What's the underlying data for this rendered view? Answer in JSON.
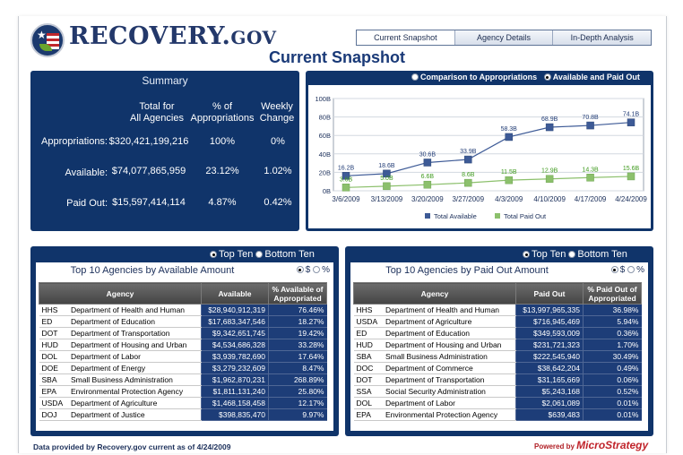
{
  "logo": {
    "main": "RECOVERY.",
    "suffix": "GOV"
  },
  "tabs": [
    {
      "label": "Current Snapshot",
      "active": true
    },
    {
      "label": "Agency Details",
      "active": false
    },
    {
      "label": "In-Depth Analysis",
      "active": false
    }
  ],
  "page_title": "Current Snapshot",
  "summary": {
    "title": "Summary",
    "col1": "Total for\nAll Agencies",
    "col2": "% of\nAppropriations",
    "col3": "Weekly\nChange",
    "rows": [
      {
        "label": "Appropriations:",
        "total": "$320,421,199,216",
        "pct": "100%",
        "weekly": "0%"
      },
      {
        "label": "Available:",
        "total": "$74,077,865,959",
        "pct": "23.12%",
        "weekly": "1.02%"
      },
      {
        "label": "Paid Out:",
        "total": "$15,597,414,114",
        "pct": "4.87%",
        "weekly": "0.42%"
      }
    ]
  },
  "chart_controls": {
    "option1": "Comparison to Appropriations",
    "option2": "Available and Paid Out",
    "selected": "option2"
  },
  "chart_data": {
    "type": "line",
    "x": [
      "3/6/2009",
      "3/13/2009",
      "3/20/2009",
      "3/27/2009",
      "4/3/2009",
      "4/10/2009",
      "4/17/2009",
      "4/24/2009"
    ],
    "ylim": [
      0,
      100
    ],
    "y_ticks": [
      "0B",
      "20B",
      "40B",
      "60B",
      "80B",
      "100B"
    ],
    "series": [
      {
        "name": "Total Available",
        "color": "#3d5a96",
        "values": [
          16.2,
          18.6,
          30.6,
          33.9,
          58.3,
          68.9,
          70.8,
          74.1
        ],
        "labels": [
          "16.2B",
          "18.6B",
          "30.6B",
          "33.9B",
          "58.3B",
          "68.9B",
          "70.8B",
          "74.1B"
        ]
      },
      {
        "name": "Total Paid Out",
        "color": "#8cc06c",
        "values": [
          3.6,
          5.0,
          6.6,
          8.6,
          11.5,
          12.9,
          14.3,
          15.6
        ],
        "labels": [
          "3.6B",
          "5.0B",
          "6.6B",
          "8.6B",
          "11.5B",
          "12.9B",
          "14.3B",
          "15.6B"
        ]
      }
    ]
  },
  "available_panel": {
    "top_ten": "Top Ten",
    "bottom_ten": "Bottom Ten",
    "title": "Top 10 Agencies by Available Amount",
    "unit_dollar": "$",
    "unit_pct": "%",
    "headers": [
      "Agency",
      "Available",
      "% Available of Appropriated"
    ],
    "rows": [
      [
        "HHS",
        "Department of Health and Human",
        "$28,940,912,319",
        "76.46%"
      ],
      [
        "ED",
        "Department of Education",
        "$17,683,347,546",
        "18.27%"
      ],
      [
        "DOT",
        "Department of Transportation",
        "$9,342,651,745",
        "19.42%"
      ],
      [
        "HUD",
        "Department of Housing and Urban",
        "$4,534,686,328",
        "33.28%"
      ],
      [
        "DOL",
        "Department of Labor",
        "$3,939,782,690",
        "17.64%"
      ],
      [
        "DOE",
        "Department of Energy",
        "$3,279,232,609",
        "8.47%"
      ],
      [
        "SBA",
        "Small Business Administration",
        "$1,962,870,231",
        "268.89%"
      ],
      [
        "EPA",
        "Environmental Protection Agency",
        "$1,811,131,240",
        "25.80%"
      ],
      [
        "USDA",
        "Department of Agriculture",
        "$1,468,158,458",
        "12.17%"
      ],
      [
        "DOJ",
        "Department of Justice",
        "$398,835,470",
        "9.97%"
      ]
    ]
  },
  "paid_panel": {
    "top_ten": "Top Ten",
    "bottom_ten": "Bottom Ten",
    "title": "Top 10 Agencies by Paid Out Amount",
    "unit_dollar": "$",
    "unit_pct": "%",
    "headers": [
      "Agency",
      "Paid Out",
      "% Paid Out of Appropriated"
    ],
    "rows": [
      [
        "HHS",
        "Department of Health and Human",
        "$13,997,965,335",
        "36.98%"
      ],
      [
        "USDA",
        "Department of Agriculture",
        "$716,945,469",
        "5.94%"
      ],
      [
        "ED",
        "Department of Education",
        "$349,593,009",
        "0.36%"
      ],
      [
        "HUD",
        "Department of Housing and Urban",
        "$231,721,323",
        "1.70%"
      ],
      [
        "SBA",
        "Small Business Administration",
        "$222,545,940",
        "30.49%"
      ],
      [
        "DOC",
        "Department of Commerce",
        "$38,642,204",
        "0.49%"
      ],
      [
        "DOT",
        "Department of Transportation",
        "$31,165,669",
        "0.06%"
      ],
      [
        "SSA",
        "Social Security Administration",
        "$5,243,168",
        "0.52%"
      ],
      [
        "DOL",
        "Department of Labor",
        "$2,061,089",
        "0.01%"
      ],
      [
        "EPA",
        "Environmental Protection Agency",
        "$639,483",
        "0.01%"
      ]
    ]
  },
  "footer": {
    "data_note": "Data provided by Recovery.gov current as of 4/24/2009",
    "powered_by": "Powered by",
    "brand": "MicroStrategy"
  }
}
